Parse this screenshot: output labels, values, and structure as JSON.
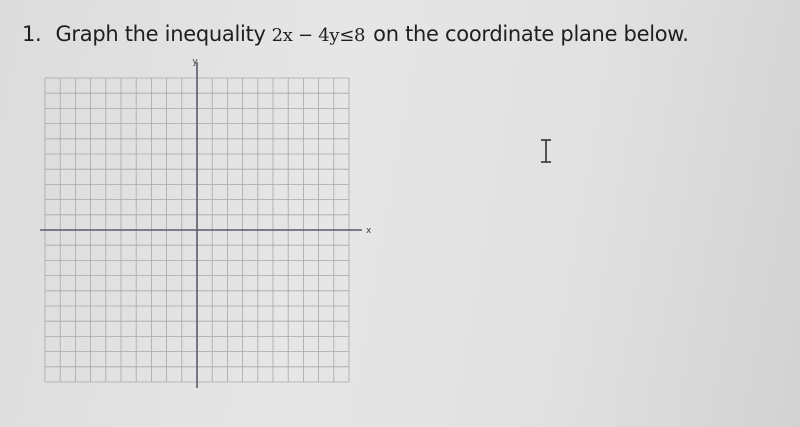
{
  "question": {
    "number": "1.",
    "text_before": "Graph the inequality",
    "inequality": "2x − 4y≤8",
    "text_after": "on the coordinate plane below."
  },
  "plane": {
    "y_label": "y",
    "x_label": "x"
  }
}
